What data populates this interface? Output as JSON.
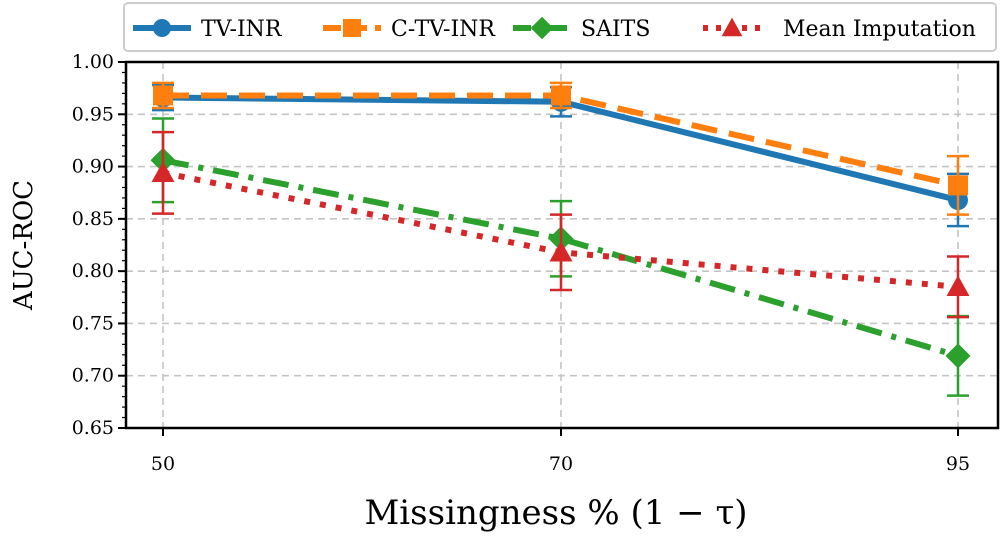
{
  "chart_data": {
    "type": "line",
    "xlabel": "Missingness % (1 − τ)",
    "ylabel": "AUC-ROC",
    "categories": [
      "50",
      "70",
      "95"
    ],
    "ylim": [
      0.65,
      1.0
    ],
    "yticks": [
      "0.65",
      "0.70",
      "0.75",
      "0.80",
      "0.85",
      "0.90",
      "0.95",
      "1.00"
    ],
    "grid": true,
    "legend_position": "top",
    "series": [
      {
        "name": "TV-INR",
        "values": [
          0.966,
          0.962,
          0.868
        ],
        "errors": [
          0.012,
          0.014,
          0.025
        ],
        "color": "#1f77b4",
        "linestyle": "solid",
        "marker": "circle"
      },
      {
        "name": "C-TV-INR",
        "values": [
          0.968,
          0.968,
          0.882
        ],
        "errors": [
          0.012,
          0.012,
          0.028
        ],
        "color": "#ff7f0e",
        "linestyle": "dashed",
        "marker": "square"
      },
      {
        "name": "SAITS",
        "values": [
          0.906,
          0.831,
          0.719
        ],
        "errors": [
          0.04,
          0.036,
          0.038
        ],
        "color": "#2ca02c",
        "linestyle": "dashdot",
        "marker": "diamond"
      },
      {
        "name": "Mean Imputation",
        "values": [
          0.894,
          0.818,
          0.785
        ],
        "errors": [
          0.039,
          0.036,
          0.029
        ],
        "color": "#d62728",
        "linestyle": "dotted",
        "marker": "triangle"
      }
    ]
  }
}
